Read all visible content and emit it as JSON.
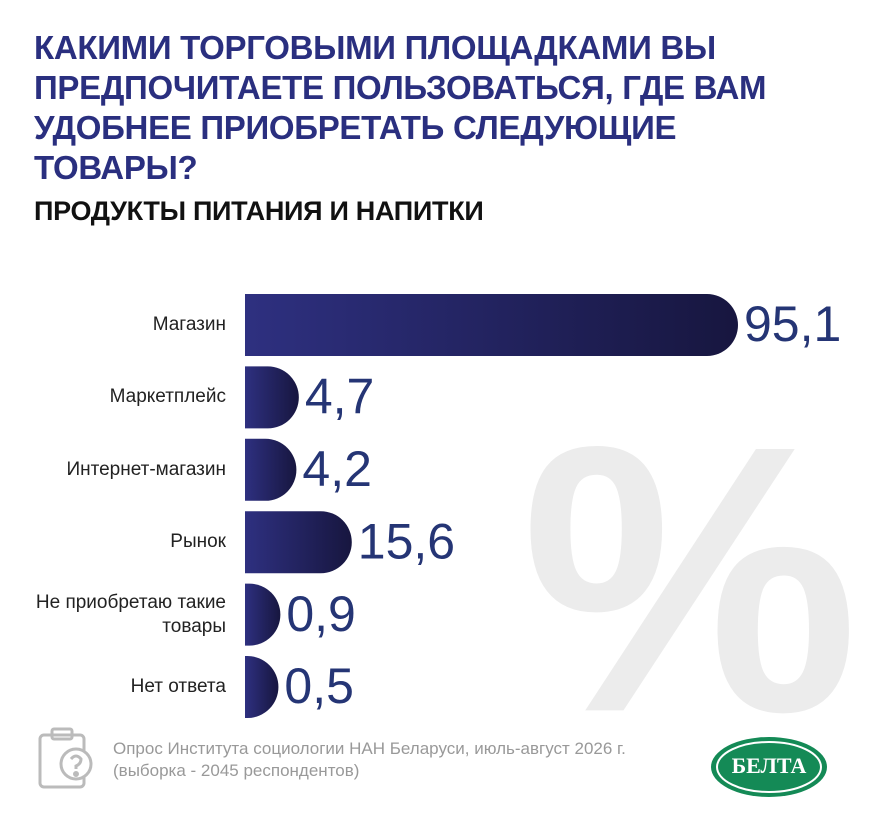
{
  "chart_data": {
    "type": "bar",
    "orientation": "horizontal",
    "title": "КАКИМИ ТОРГОВЫМИ ПЛОЩАДКАМИ ВЫ ПРЕДПОЧИТАЕТЕ ПОЛЬЗОВАТЬСЯ, ГДЕ ВАМ УДОБНЕЕ ПРИОБРЕТАТЬ СЛЕДУЮЩИЕ ТОВАРЫ?",
    "subtitle": "ПРОДУКТЫ ПИТАНИЯ И НАПИТКИ",
    "categories": [
      "Магазин",
      "Маркетплейс",
      "Интернет-магазин",
      "Рынок",
      "Не приобретаю такие товары",
      "Нет ответа"
    ],
    "values": [
      95.1,
      4.7,
      4.2,
      15.6,
      0.9,
      0.5
    ],
    "value_labels": [
      "95,1",
      "4,7",
      "4,2",
      "15,6",
      "0,9",
      "0,5"
    ],
    "color": "#2b2d77",
    "watermark": "%",
    "source": [
      "Опрос Института социологии НАН Беларуси, июль-август 2026 г.",
      "(выборка - 2045 респондентов)"
    ],
    "logo": "БЕЛТА"
  }
}
